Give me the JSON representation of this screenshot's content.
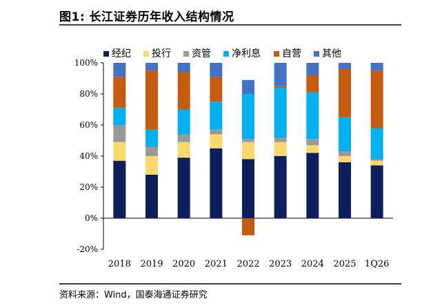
{
  "figure_title": "图1:  长江证券历年收入结构情况",
  "source_note": "资料来源：Wind，国泰海通证券研究",
  "chart_data": {
    "type": "bar",
    "stacked": true,
    "categories": [
      "2018",
      "2019",
      "2020",
      "2021",
      "2022",
      "2023",
      "2024",
      "2025",
      "1Q26"
    ],
    "y_tick_labels": [
      "-20%",
      "0%",
      "20%",
      "40%",
      "60%",
      "80%",
      "100%"
    ],
    "ylim": [
      -0.2,
      1.0
    ],
    "legend_position": "top",
    "series": [
      {
        "name": "经纪",
        "color": "#0d1f5c",
        "values": [
          0.37,
          0.28,
          0.39,
          0.45,
          0.38,
          0.4,
          0.42,
          0.36,
          0.34
        ]
      },
      {
        "name": "投行",
        "color": "#fcd96c",
        "values": [
          0.12,
          0.12,
          0.1,
          0.09,
          0.11,
          0.09,
          0.05,
          0.04,
          0.03
        ]
      },
      {
        "name": "资管",
        "color": "#999999",
        "values": [
          0.11,
          0.06,
          0.05,
          0.03,
          0.02,
          0.03,
          0.04,
          0.03,
          0.01
        ]
      },
      {
        "name": "净利息",
        "color": "#00b0f0",
        "values": [
          0.11,
          0.11,
          0.16,
          0.18,
          0.29,
          0.32,
          0.3,
          0.22,
          0.2
        ]
      },
      {
        "name": "自营",
        "color": "#c55a11",
        "values": [
          0.2,
          0.38,
          0.24,
          0.16,
          -0.11,
          0.01,
          0.11,
          0.31,
          0.37
        ]
      },
      {
        "name": "其他",
        "color": "#4472c4",
        "values": [
          0.09,
          0.05,
          0.06,
          0.09,
          0.09,
          0.15,
          0.08,
          0.04,
          0.05
        ]
      }
    ]
  }
}
